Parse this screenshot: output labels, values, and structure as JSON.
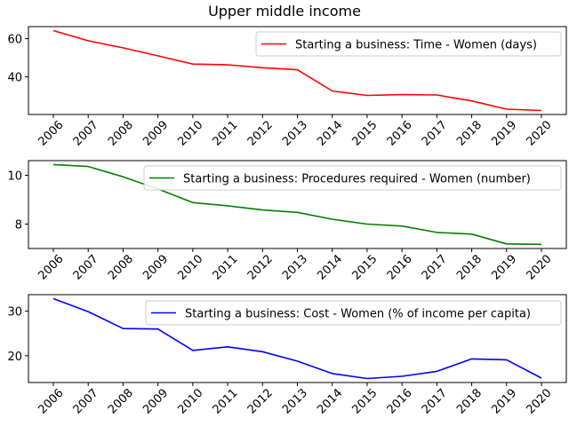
{
  "figure": {
    "title": "Upper middle income"
  },
  "chart_data": [
    {
      "type": "line",
      "x": [
        2006,
        2007,
        2008,
        2009,
        2010,
        2011,
        2012,
        2013,
        2014,
        2015,
        2016,
        2017,
        2018,
        2019,
        2020
      ],
      "series": [
        {
          "name": "Starting a business: Time - Women (days)",
          "color": "#ff0000",
          "values": [
            64.2,
            58.9,
            55.2,
            51.0,
            46.7,
            46.3,
            44.8,
            43.7,
            32.6,
            30.3,
            30.7,
            30.5,
            27.4,
            23.1,
            22.4
          ]
        }
      ],
      "ylim": [
        20.3,
        66.3
      ],
      "yticks": [
        40,
        60
      ],
      "legend_loc": "upper right",
      "xlabel": "",
      "ylabel": ""
    },
    {
      "type": "line",
      "x": [
        2006,
        2007,
        2008,
        2009,
        2010,
        2011,
        2012,
        2013,
        2014,
        2015,
        2016,
        2017,
        2018,
        2019,
        2020
      ],
      "series": [
        {
          "name": "Starting a business: Procedures required - Women (number)",
          "color": "#008000",
          "values": [
            10.44,
            10.36,
            9.94,
            9.44,
            8.88,
            8.75,
            8.58,
            8.48,
            8.2,
            8.0,
            7.92,
            7.66,
            7.59,
            7.19,
            7.17
          ]
        }
      ],
      "ylim": [
        7.0,
        10.6
      ],
      "yticks": [
        8,
        10
      ],
      "legend_loc": "upper right",
      "xlabel": "",
      "ylabel": ""
    },
    {
      "type": "line",
      "x": [
        2006,
        2007,
        2008,
        2009,
        2010,
        2011,
        2012,
        2013,
        2014,
        2015,
        2016,
        2017,
        2018,
        2019,
        2020
      ],
      "series": [
        {
          "name": "Starting a business: Cost - Women (% of income per capita)",
          "color": "#0000ff",
          "values": [
            32.8,
            29.9,
            26.1,
            26.0,
            21.2,
            22.0,
            20.9,
            18.8,
            16.0,
            14.9,
            15.4,
            16.5,
            19.3,
            19.1,
            15.0
          ]
        }
      ],
      "ylim": [
        14.0,
        33.7
      ],
      "yticks": [
        20,
        30
      ],
      "legend_loc": "upper right",
      "xlabel": "",
      "ylabel": ""
    }
  ]
}
